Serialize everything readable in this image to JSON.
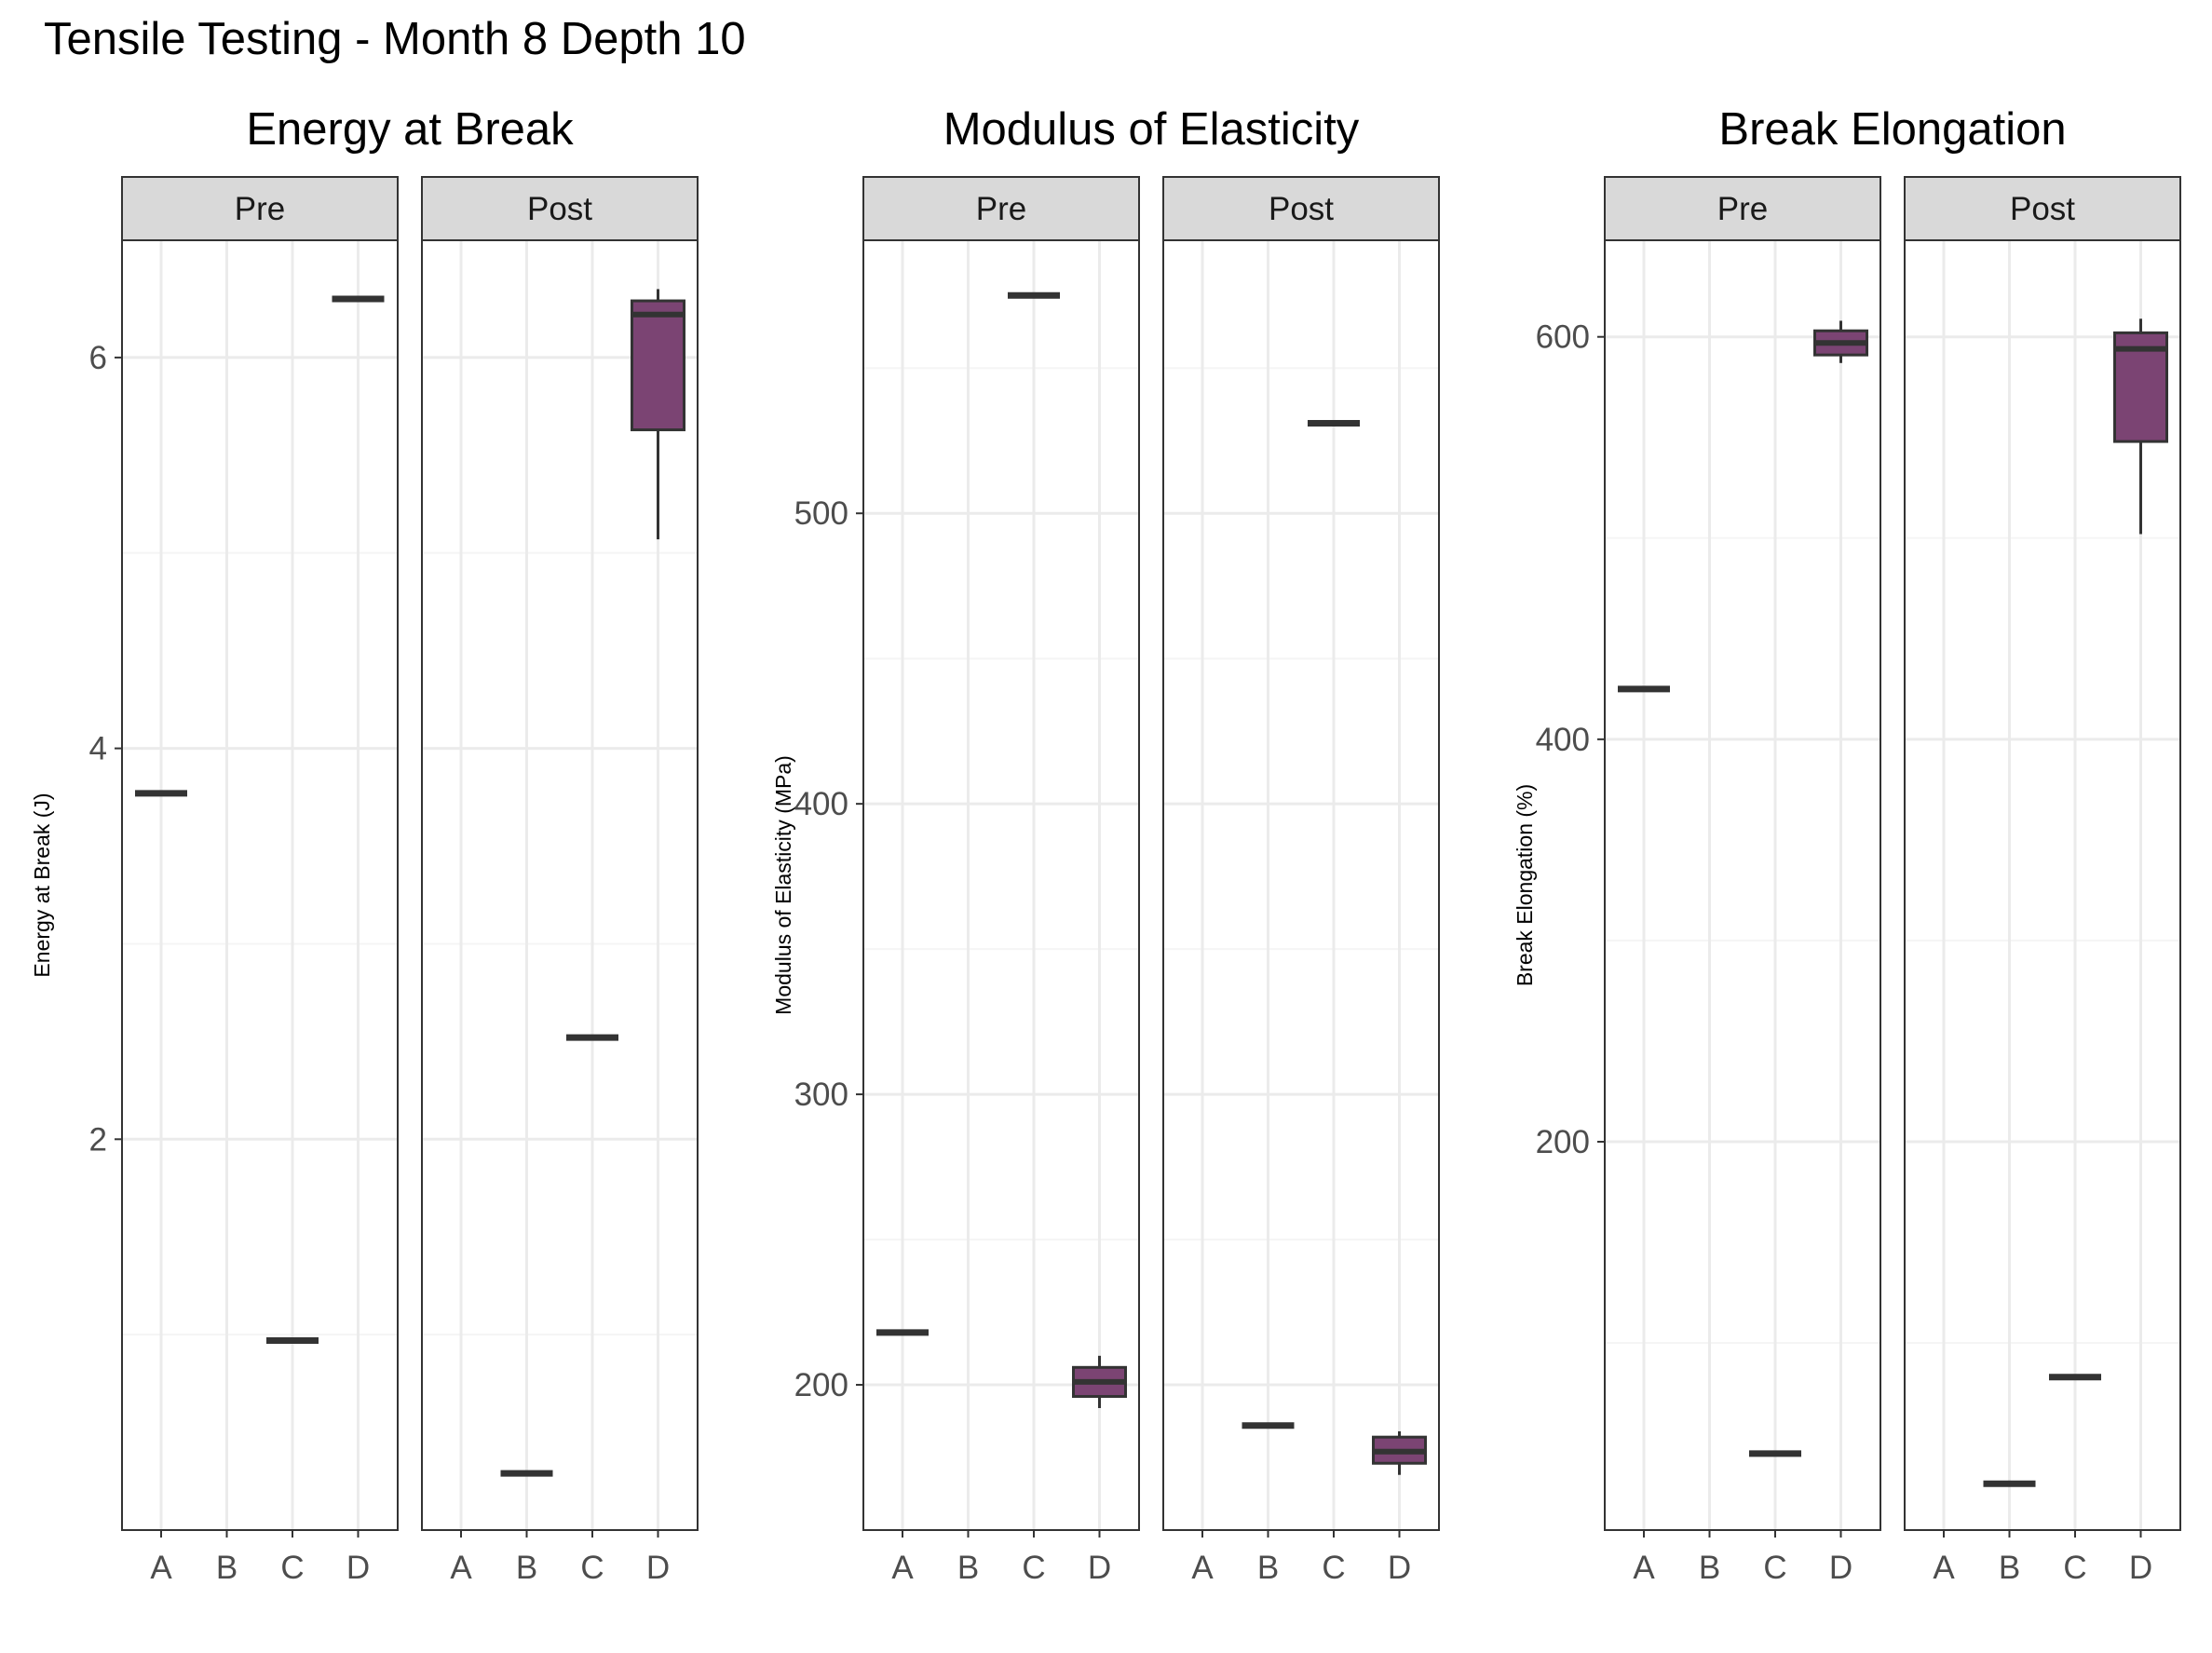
{
  "title": "Tensile Testing - Month 8 Depth 10",
  "style": {
    "fill": "#7b4473",
    "line": "#333333",
    "strip_bg": "#d9d9d9",
    "grid_major": "#ebebeb",
    "grid_minor": "#f5f5f5",
    "panel_border": "#333333"
  },
  "chart_data": [
    {
      "type": "box",
      "title": "Energy at Break",
      "ylabel": "Energy at Break (J)",
      "ylim": [
        0.0,
        6.6
      ],
      "yticks": [
        2,
        4,
        6
      ],
      "ytick_labels": [
        "2",
        "4",
        "6"
      ],
      "ymajor_grid": [
        2,
        4,
        6
      ],
      "yminor_grid": [
        1,
        3,
        5
      ],
      "categories": [
        "A",
        "B",
        "C",
        "D"
      ],
      "facets": [
        {
          "label": "Pre",
          "boxes": [
            {
              "category": "A",
              "min": 3.77,
              "q1": 3.77,
              "median": 3.77,
              "q3": 3.77,
              "max": 3.77
            },
            {
              "category": "C",
              "min": 0.97,
              "q1": 0.97,
              "median": 0.97,
              "q3": 0.97,
              "max": 0.97
            },
            {
              "category": "D",
              "min": 6.3,
              "q1": 6.3,
              "median": 6.3,
              "q3": 6.3,
              "max": 6.3
            }
          ]
        },
        {
          "label": "Post",
          "boxes": [
            {
              "category": "B",
              "min": 0.29,
              "q1": 0.29,
              "median": 0.29,
              "q3": 0.29,
              "max": 0.29
            },
            {
              "category": "C",
              "min": 2.52,
              "q1": 2.52,
              "median": 2.52,
              "q3": 2.52,
              "max": 2.52
            },
            {
              "category": "D",
              "min": 5.07,
              "q1": 5.63,
              "median": 6.22,
              "q3": 6.29,
              "max": 6.35
            }
          ]
        }
      ]
    },
    {
      "type": "box",
      "title": "Modulus of Elasticity",
      "ylabel": "Modulus of Elasticity (MPa)",
      "ylim": [
        150,
        594
      ],
      "yticks": [
        200,
        300,
        400,
        500
      ],
      "ytick_labels": [
        "200",
        "300",
        "400",
        "500"
      ],
      "ymajor_grid": [
        200,
        300,
        400,
        500
      ],
      "yminor_grid": [
        250,
        350,
        450,
        550
      ],
      "categories": [
        "A",
        "B",
        "C",
        "D"
      ],
      "facets": [
        {
          "label": "Pre",
          "boxes": [
            {
              "category": "A",
              "min": 218,
              "q1": 218,
              "median": 218,
              "q3": 218,
              "max": 218
            },
            {
              "category": "C",
              "min": 575,
              "q1": 575,
              "median": 575,
              "q3": 575,
              "max": 575
            },
            {
              "category": "D",
              "min": 192,
              "q1": 196,
              "median": 201,
              "q3": 206,
              "max": 210
            }
          ]
        },
        {
          "label": "Post",
          "boxes": [
            {
              "category": "B",
              "min": 186,
              "q1": 186,
              "median": 186,
              "q3": 186,
              "max": 186
            },
            {
              "category": "C",
              "min": 531,
              "q1": 531,
              "median": 531,
              "q3": 531,
              "max": 531
            },
            {
              "category": "D",
              "min": 169,
              "q1": 173,
              "median": 177,
              "q3": 182,
              "max": 184
            }
          ]
        }
      ]
    },
    {
      "type": "box",
      "title": "Break Elongation",
      "ylabel": "Break Elongation (%)",
      "ylim": [
        7,
        648
      ],
      "yticks": [
        200,
        400,
        600
      ],
      "ytick_labels": [
        "200",
        "400",
        "600"
      ],
      "ymajor_grid": [
        200,
        400,
        600
      ],
      "yminor_grid": [
        100,
        300,
        500
      ],
      "categories": [
        "A",
        "B",
        "C",
        "D"
      ],
      "facets": [
        {
          "label": "Pre",
          "boxes": [
            {
              "category": "A",
              "min": 425,
              "q1": 425,
              "median": 425,
              "q3": 425,
              "max": 425
            },
            {
              "category": "C",
              "min": 45,
              "q1": 45,
              "median": 45,
              "q3": 45,
              "max": 45
            },
            {
              "category": "D",
              "min": 587,
              "q1": 591,
              "median": 597,
              "q3": 603,
              "max": 608
            }
          ]
        },
        {
          "label": "Post",
          "boxes": [
            {
              "category": "B",
              "min": 30,
              "q1": 30,
              "median": 30,
              "q3": 30,
              "max": 30
            },
            {
              "category": "C",
              "min": 83,
              "q1": 83,
              "median": 83,
              "q3": 83,
              "max": 83
            },
            {
              "category": "D",
              "min": 502,
              "q1": 548,
              "median": 594,
              "q3": 602,
              "max": 609
            }
          ]
        }
      ]
    }
  ]
}
